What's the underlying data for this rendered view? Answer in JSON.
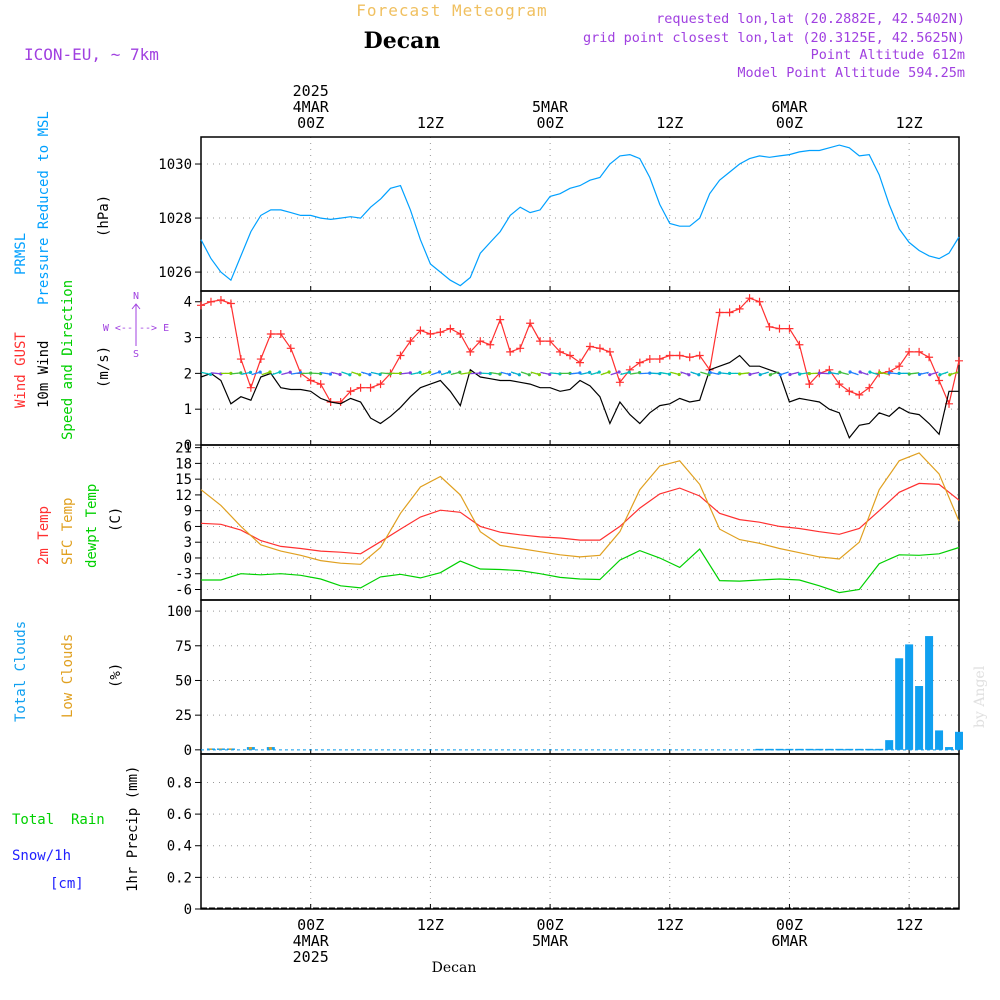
{
  "header": {
    "title": "Forecast Meteogram",
    "location": "Decan",
    "model": "ICON-EU, ~ 7km",
    "requested": "requested lon,lat (20.2882E, 42.5402N)",
    "grid_point": "grid point closest lon,lat (20.3125E, 42.5625N)",
    "point_altitude": "Point Altitude 612m",
    "model_altitude": "Model Point Altitude 594.25m",
    "footer_location": "Decan",
    "watermark": "by Angel"
  },
  "time_axis": {
    "top_labels": [
      {
        "lines": [
          "2025",
          "4MAR",
          "00Z"
        ],
        "hour": 0
      },
      {
        "lines": [
          "12Z"
        ],
        "hour": 12
      },
      {
        "lines": [
          "5MAR",
          "00Z"
        ],
        "hour": 24
      },
      {
        "lines": [
          "12Z"
        ],
        "hour": 36
      },
      {
        "lines": [
          "6MAR",
          "00Z"
        ],
        "hour": 48
      },
      {
        "lines": [
          "12Z"
        ],
        "hour": 60
      }
    ],
    "bottom_labels": [
      {
        "lines": [
          "00Z",
          "4MAR",
          "2025"
        ],
        "hour": 0
      },
      {
        "lines": [
          "12Z"
        ],
        "hour": 12
      },
      {
        "lines": [
          "00Z",
          "5MAR"
        ],
        "hour": 24
      },
      {
        "lines": [
          "12Z"
        ],
        "hour": 36
      },
      {
        "lines": [
          "00Z",
          "6MAR"
        ],
        "hour": 48
      },
      {
        "lines": [
          "12Z"
        ],
        "hour": 60
      }
    ],
    "xlim_hours": [
      -11,
      65
    ]
  },
  "colors": {
    "pressure": "#00a0ff",
    "gust": "#ff3030",
    "wind": "#000000",
    "temp": "#ff3030",
    "sfc": "#e0a020",
    "dewpt": "#00d000",
    "total_cloud": "#10a0f0",
    "low_cloud": "#e0a020",
    "rain": "#00d000",
    "snow": "#2020ff",
    "label_purple": "#a040e0",
    "title_gold": "#f0c060"
  },
  "chart_data": [
    {
      "type": "line",
      "panel": "pressure",
      "labels": {
        "name": "PRMSL",
        "desc": "Pressure Reduced to MSL",
        "unit": "(hPa)"
      },
      "yticks": [
        1026,
        1028,
        1030
      ],
      "ylim": [
        1025.3,
        1031.0
      ],
      "series": [
        {
          "name": "PRMSL",
          "x": [
            -11,
            -10,
            -9,
            -8,
            -7,
            -6,
            -5,
            -4,
            -3,
            -2,
            -1,
            0,
            1,
            2,
            3,
            4,
            5,
            6,
            7,
            8,
            9,
            10,
            11,
            12,
            13,
            14,
            15,
            16,
            17,
            18,
            19,
            20,
            21,
            22,
            23,
            24,
            25,
            26,
            27,
            28,
            29,
            30,
            31,
            32,
            33,
            34,
            35,
            36,
            37,
            38,
            39,
            40,
            41,
            42,
            43,
            44,
            45,
            46,
            47,
            48,
            49,
            50,
            51,
            52,
            53,
            54,
            55,
            56,
            57,
            58,
            59,
            60,
            61,
            62,
            63,
            64,
            65
          ],
          "values": [
            1027.2,
            1026.5,
            1026.0,
            1025.7,
            1026.6,
            1027.5,
            1028.1,
            1028.3,
            1028.3,
            1028.2,
            1028.1,
            1028.1,
            1028.0,
            1027.95,
            1028.0,
            1028.05,
            1028.0,
            1028.4,
            1028.7,
            1029.1,
            1029.2,
            1028.3,
            1027.2,
            1026.3,
            1026.0,
            1025.7,
            1025.5,
            1025.8,
            1026.7,
            1027.1,
            1027.5,
            1028.1,
            1028.4,
            1028.2,
            1028.3,
            1028.8,
            1028.9,
            1029.1,
            1029.2,
            1029.4,
            1029.5,
            1030.0,
            1030.3,
            1030.35,
            1030.2,
            1029.5,
            1028.5,
            1027.8,
            1027.7,
            1027.7,
            1028.0,
            1028.9,
            1029.4,
            1029.7,
            1030.0,
            1030.2,
            1030.3,
            1030.25,
            1030.3,
            1030.35,
            1030.45,
            1030.5,
            1030.5,
            1030.6,
            1030.7,
            1030.6,
            1030.3,
            1030.35,
            1029.6,
            1028.5,
            1027.6,
            1027.1,
            1026.8,
            1026.6,
            1026.5,
            1026.7,
            1027.3
          ]
        }
      ]
    },
    {
      "type": "line",
      "panel": "wind",
      "labels": {
        "gust": "Wind GUST",
        "wind": "10m Wind",
        "dir": "Speed and Direction",
        "unit": "(m/s)",
        "compass_n": "N",
        "compass_s": "S",
        "compass_we": "W <--|--> E"
      },
      "yticks": [
        0,
        1,
        2,
        3,
        4
      ],
      "ylim": [
        0,
        4.3
      ],
      "series": [
        {
          "name": "Wind GUST",
          "x": [
            -11,
            -10,
            -9,
            -8,
            -7,
            -6,
            -5,
            -4,
            -3,
            -2,
            -1,
            0,
            1,
            2,
            3,
            4,
            5,
            6,
            7,
            8,
            9,
            10,
            11,
            12,
            13,
            14,
            15,
            16,
            17,
            18,
            19,
            20,
            21,
            22,
            23,
            24,
            25,
            26,
            27,
            28,
            29,
            30,
            31,
            32,
            33,
            34,
            35,
            36,
            37,
            38,
            39,
            40,
            41,
            42,
            43,
            44,
            45,
            46,
            47,
            48,
            49,
            50,
            51,
            52,
            53,
            54,
            55,
            56,
            57,
            58,
            59,
            60,
            61,
            62,
            63,
            64,
            65
          ],
          "values": [
            3.9,
            4.0,
            4.05,
            3.95,
            2.4,
            1.6,
            2.4,
            3.1,
            3.1,
            2.7,
            2.0,
            1.8,
            1.7,
            1.2,
            1.2,
            1.5,
            1.6,
            1.6,
            1.7,
            2.0,
            2.5,
            2.9,
            3.2,
            3.1,
            3.15,
            3.25,
            3.1,
            2.6,
            2.9,
            2.8,
            3.5,
            2.6,
            2.7,
            3.4,
            2.9,
            2.9,
            2.6,
            2.5,
            2.3,
            2.75,
            2.7,
            2.6,
            1.75,
            2.1,
            2.3,
            2.4,
            2.4,
            2.5,
            2.5,
            2.45,
            2.5,
            2.1,
            3.7,
            3.7,
            3.8,
            4.1,
            4.0,
            3.3,
            3.25,
            3.25,
            2.8,
            1.7,
            2.0,
            2.1,
            1.7,
            1.5,
            1.4,
            1.6,
            2.0,
            2.05,
            2.2,
            2.6,
            2.6,
            2.45,
            1.8,
            1.15,
            2.35
          ]
        },
        {
          "name": "10m Wind",
          "x": [
            -11,
            -10,
            -9,
            -8,
            -7,
            -6,
            -5,
            -4,
            -3,
            -2,
            -1,
            0,
            1,
            2,
            3,
            4,
            5,
            6,
            7,
            8,
            9,
            10,
            11,
            12,
            13,
            14,
            15,
            16,
            17,
            18,
            19,
            20,
            21,
            22,
            23,
            24,
            25,
            26,
            27,
            28,
            29,
            30,
            31,
            32,
            33,
            34,
            35,
            36,
            37,
            38,
            39,
            40,
            41,
            42,
            43,
            44,
            45,
            46,
            47,
            48,
            49,
            50,
            51,
            52,
            53,
            54,
            55,
            56,
            57,
            58,
            59,
            60,
            61,
            62,
            63,
            64,
            65
          ],
          "values": [
            1.9,
            2.0,
            1.8,
            1.15,
            1.35,
            1.25,
            1.9,
            2.0,
            1.6,
            1.55,
            1.55,
            1.5,
            1.3,
            1.2,
            1.15,
            1.3,
            1.2,
            0.75,
            0.6,
            0.8,
            1.05,
            1.35,
            1.6,
            1.7,
            1.8,
            1.5,
            1.1,
            2.1,
            1.9,
            1.85,
            1.8,
            1.8,
            1.75,
            1.7,
            1.6,
            1.6,
            1.5,
            1.55,
            1.8,
            1.65,
            1.35,
            0.6,
            1.2,
            0.85,
            0.6,
            0.9,
            1.1,
            1.15,
            1.3,
            1.2,
            1.25,
            2.1,
            2.2,
            2.3,
            2.5,
            2.2,
            2.2,
            2.1,
            2.0,
            1.2,
            1.3,
            1.25,
            1.2,
            1.0,
            0.9,
            0.2,
            0.55,
            0.6,
            0.9,
            0.8,
            1.05,
            0.9,
            0.85,
            0.6,
            0.3,
            1.5,
            1.5
          ]
        }
      ]
    },
    {
      "type": "line",
      "panel": "temperature",
      "labels": {
        "temp": "2m Temp",
        "sfc": "SFC Temp",
        "dewpt": "dewpt Temp",
        "unit": "(C)"
      },
      "yticks": [
        -6,
        -3,
        0,
        3,
        6,
        9,
        12,
        15,
        18,
        21
      ],
      "ylim": [
        -8,
        21.5
      ],
      "series": [
        {
          "name": "2m Temp",
          "x": [
            -11,
            -9,
            -7,
            -5,
            -3,
            -1,
            1,
            3,
            5,
            7,
            9,
            11,
            13,
            15,
            17,
            19,
            21,
            23,
            25,
            27,
            29,
            31,
            33,
            35,
            37,
            39,
            41,
            43,
            45,
            47,
            49,
            51,
            53,
            55,
            57,
            59,
            61,
            63,
            65
          ],
          "values": [
            6.6,
            6.4,
            5.3,
            3.3,
            2.2,
            1.8,
            1.3,
            1.1,
            0.8,
            3.1,
            5.5,
            7.8,
            9.1,
            8.7,
            6.0,
            4.9,
            4.4,
            4.0,
            3.8,
            3.4,
            3.4,
            6.0,
            9.5,
            12.2,
            13.3,
            11.8,
            8.5,
            7.3,
            6.8,
            6.0,
            5.6,
            5.0,
            4.5,
            5.6,
            9.0,
            12.5,
            14.2,
            14.0,
            11.0
          ]
        },
        {
          "name": "SFC Temp",
          "x": [
            -11,
            -9,
            -7,
            -5,
            -3,
            -1,
            1,
            3,
            5,
            7,
            9,
            11,
            13,
            15,
            17,
            19,
            21,
            23,
            25,
            27,
            29,
            31,
            33,
            35,
            37,
            39,
            41,
            43,
            45,
            47,
            49,
            51,
            53,
            55,
            57,
            59,
            61,
            63,
            65
          ],
          "values": [
            13.0,
            10.0,
            6.0,
            2.5,
            1.3,
            0.5,
            -0.5,
            -1.0,
            -1.2,
            2.0,
            8.5,
            13.5,
            15.5,
            12.0,
            5.0,
            2.4,
            1.8,
            1.2,
            0.6,
            0.2,
            0.5,
            5.0,
            13.0,
            17.5,
            18.5,
            14.0,
            5.5,
            3.5,
            2.8,
            1.8,
            1.0,
            0.2,
            -0.2,
            3.0,
            13.0,
            18.5,
            20.0,
            16.0,
            7.0
          ]
        },
        {
          "name": "dewpt Temp",
          "x": [
            -11,
            -9,
            -7,
            -5,
            -3,
            -1,
            1,
            3,
            5,
            7,
            9,
            11,
            13,
            15,
            17,
            19,
            21,
            23,
            25,
            27,
            29,
            31,
            33,
            35,
            37,
            39,
            41,
            43,
            45,
            47,
            49,
            51,
            53,
            55,
            57,
            59,
            61,
            63,
            65
          ],
          "values": [
            -4.2,
            -4.2,
            -3.0,
            -3.2,
            -3.0,
            -3.3,
            -4.0,
            -5.3,
            -5.7,
            -3.6,
            -3.1,
            -3.8,
            -2.8,
            -0.6,
            -2.1,
            -2.2,
            -2.4,
            -3.0,
            -3.7,
            -4.0,
            -4.1,
            -0.4,
            1.4,
            0.0,
            -1.8,
            1.7,
            -4.3,
            -4.4,
            -4.2,
            -4.0,
            -4.2,
            -5.3,
            -6.6,
            -6.0,
            -1.1,
            0.6,
            0.5,
            0.8,
            2.0
          ]
        }
      ]
    },
    {
      "type": "bar",
      "panel": "clouds",
      "labels": {
        "total": "Total Clouds",
        "low": "Low Clouds",
        "unit": "(%)"
      },
      "yticks": [
        0,
        25,
        50,
        75,
        100
      ],
      "ylim": [
        -3,
        108
      ],
      "series": [
        {
          "name": "Total Clouds",
          "x": [
            -10,
            -9,
            -8,
            -6,
            -4,
            45,
            46,
            47,
            48,
            49,
            50,
            51,
            52,
            53,
            54,
            55,
            56,
            57,
            58,
            59,
            60,
            61,
            62,
            63,
            64,
            65
          ],
          "values": [
            1,
            1,
            1,
            2,
            2,
            0,
            0,
            0,
            0,
            0,
            0,
            0,
            0,
            0,
            0,
            0,
            0,
            0,
            7,
            66,
            76,
            46,
            82,
            14,
            2,
            13
          ]
        },
        {
          "name": "Low Clouds",
          "x": [
            -10,
            -9,
            -8,
            -6,
            -4
          ],
          "values": [
            1,
            1,
            1,
            2,
            2
          ]
        }
      ]
    },
    {
      "type": "bar",
      "panel": "precip",
      "labels": {
        "rain": "Total  Rain",
        "snow": "Snow/1h",
        "snow_unit": "[cm]",
        "unit": "1hr Precip (mm)"
      },
      "yticks": [
        "0",
        "0.2",
        "0.4",
        "0.6",
        "0.8"
      ],
      "ylim": [
        0,
        0.98
      ],
      "series": [
        {
          "name": "Total Rain",
          "x": [],
          "values": []
        }
      ]
    }
  ]
}
